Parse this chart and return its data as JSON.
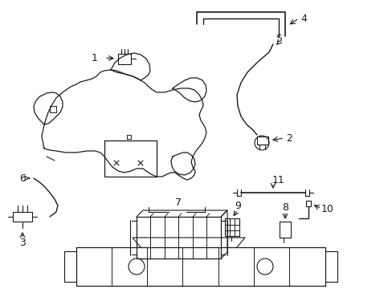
{
  "background_color": "#ffffff",
  "line_color": "#1a1a1a",
  "fig_width": 4.89,
  "fig_height": 3.6,
  "dpi": 100,
  "lw": 0.9
}
